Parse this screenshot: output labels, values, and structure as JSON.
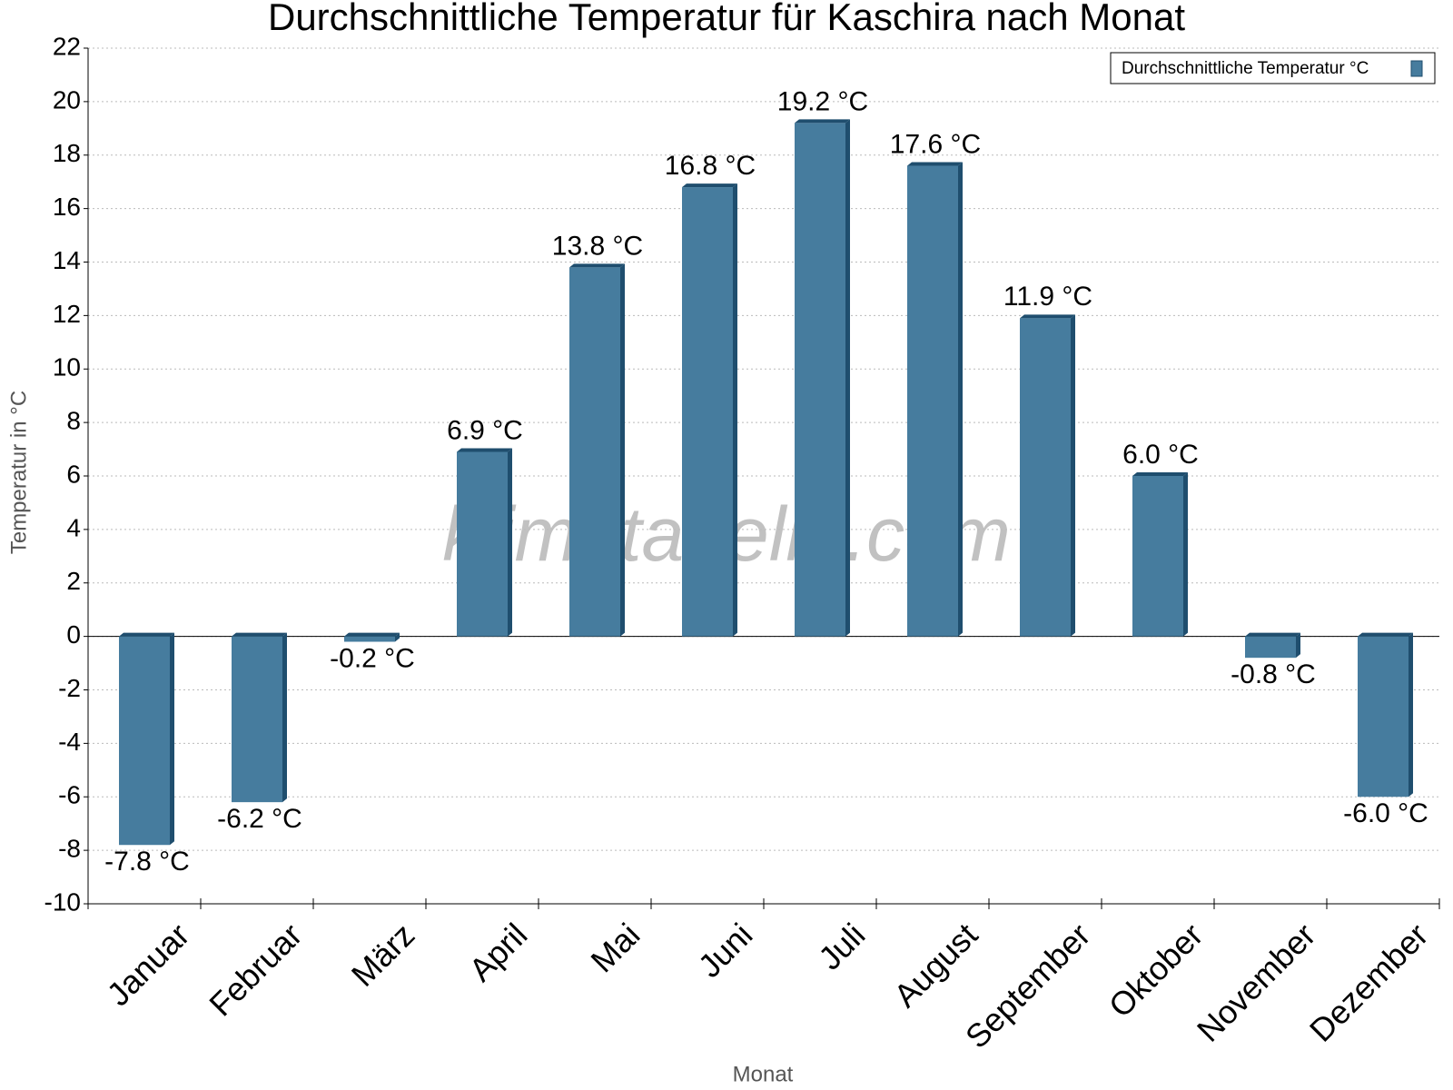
{
  "chart_data": {
    "type": "bar",
    "title": "Durchschnittliche Temperatur für Kaschira nach Monat",
    "x_label": "Monat",
    "y_label": "Temperatur in °C",
    "watermark": "klimatabelle.com",
    "categories": [
      "Januar",
      "Februar",
      "März",
      "April",
      "Mai",
      "Juni",
      "Juli",
      "August",
      "September",
      "Oktober",
      "November",
      "Dezember"
    ],
    "series": [
      {
        "name": "Durchschnittliche Temperatur °C",
        "color": "#467c9e",
        "values": [
          -7.8,
          -6.2,
          -0.2,
          6.9,
          13.8,
          16.8,
          19.2,
          17.6,
          11.9,
          6.0,
          -0.8,
          -6.0
        ],
        "value_labels": [
          "-7.8 °C",
          "-6.2 °C",
          "-0.2 °C",
          "6.9 °C",
          "13.8 °C",
          "16.8 °C",
          "19.2 °C",
          "17.6 °C",
          "11.9 °C",
          "6.0 °C",
          "-0.8 °C",
          "-6.0 °C"
        ]
      }
    ],
    "ylim": [
      -10,
      22
    ],
    "yticks": [
      -10,
      -8,
      -6,
      -4,
      -2,
      0,
      2,
      4,
      6,
      8,
      10,
      12,
      14,
      16,
      18,
      20,
      22
    ],
    "grid": true,
    "legend": "upper right"
  }
}
